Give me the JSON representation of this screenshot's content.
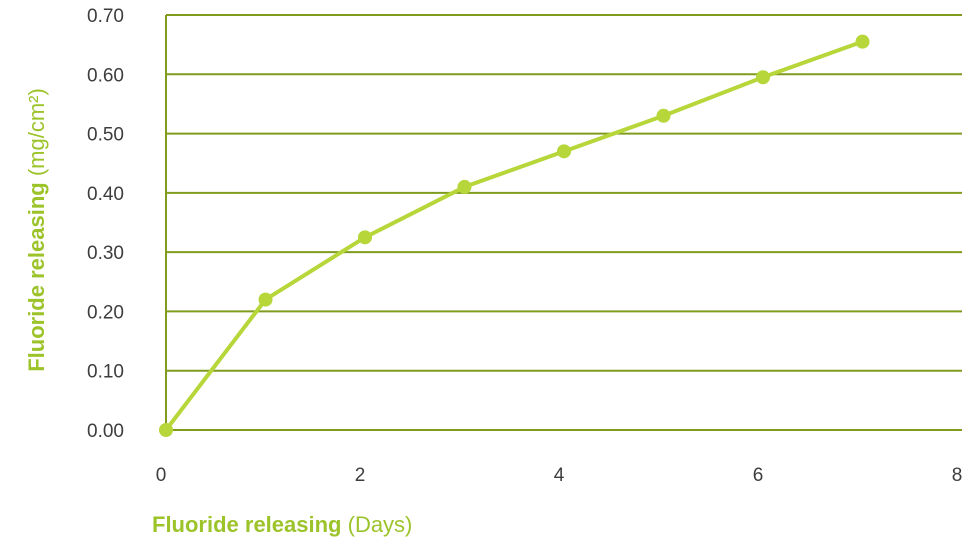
{
  "chart_data": {
    "type": "line",
    "xlabel": {
      "bold": "Fluoride releasing",
      "regular": " (Days)"
    },
    "ylabel": {
      "bold": "Fluoride releasing",
      "regular": " (mg/cm²)"
    },
    "x_ticks": [
      "0",
      "2",
      "4",
      "6",
      "8"
    ],
    "y_ticks": [
      "0.00",
      "0.10",
      "0.20",
      "0.30",
      "0.40",
      "0.50",
      "0.60",
      "0.70"
    ],
    "xlim": [
      0,
      8
    ],
    "ylim": [
      0,
      0.7
    ],
    "grid": "horizontal",
    "series": [
      {
        "x": [
          0,
          1,
          2,
          3,
          4,
          5,
          6,
          7
        ],
        "y": [
          0.0,
          0.22,
          0.325,
          0.41,
          0.47,
          0.53,
          0.595,
          0.655
        ]
      }
    ],
    "colors": {
      "line": "#b6d639",
      "grid": "#7f9c1e",
      "axis_title": "#9cc42a",
      "tick_text": "#3d3d3d"
    }
  }
}
